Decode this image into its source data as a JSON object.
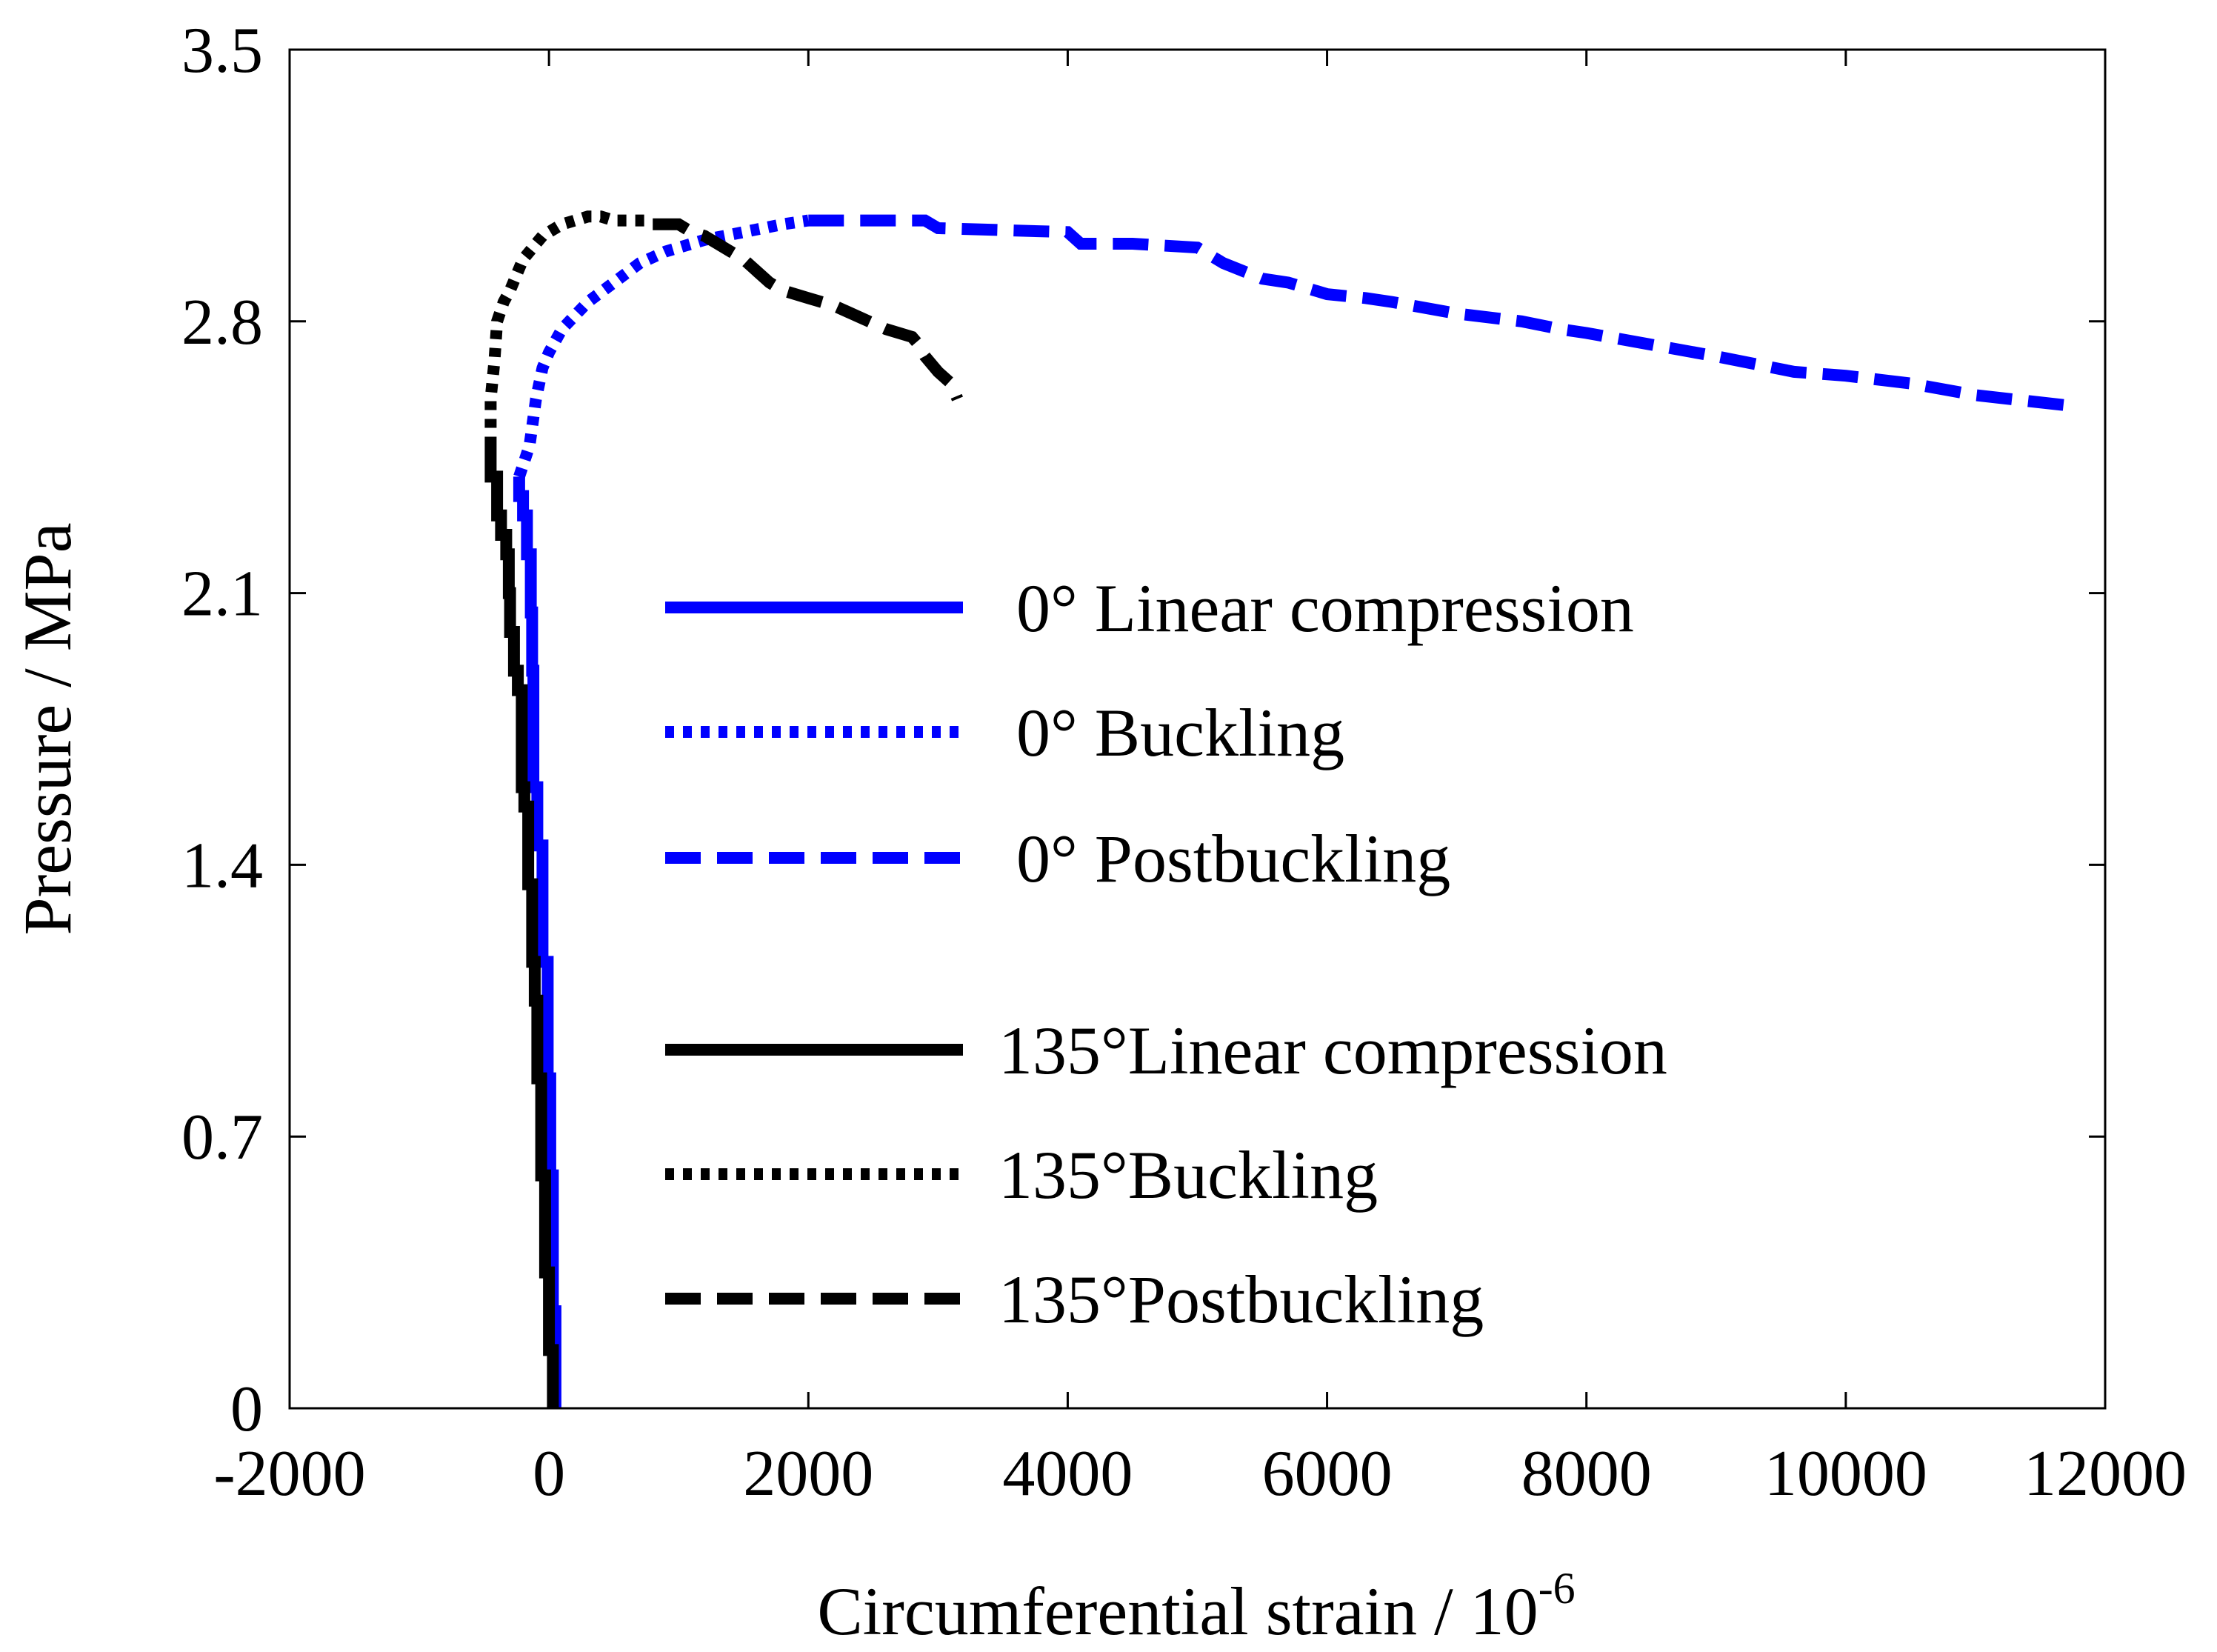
{
  "chart_data": {
    "type": "line",
    "xlabel": "Circumferential strain / 10",
    "xlabel_sup": "-6",
    "ylabel": "Pressure / MPa",
    "xlim": [
      -2000,
      12000
    ],
    "ylim": [
      0,
      3.5
    ],
    "xticks": [
      -2000,
      0,
      2000,
      4000,
      6000,
      8000,
      10000,
      12000
    ],
    "xtick_labels": [
      "-2000",
      "0",
      "2000",
      "4000",
      "6000",
      "8000",
      "10000",
      "12000"
    ],
    "yticks": [
      0,
      0.7,
      1.4,
      2.1,
      2.8,
      3.5
    ],
    "ytick_labels": [
      "0",
      "0.7",
      "1.4",
      "2.1",
      "2.8",
      "3.5"
    ],
    "grid": false,
    "legend_position": "center",
    "series": [
      {
        "name": "0° Linear compression",
        "color": "#0000ff",
        "dash": "solid",
        "x": [
          50,
          50,
          30,
          30,
          10,
          10,
          -10,
          -10,
          -50,
          -50,
          -90,
          -90,
          -120,
          -120,
          -130,
          -130,
          -140,
          -140,
          -170,
          -170,
          -200,
          -200,
          -230,
          -230
        ],
        "y": [
          0,
          0.25,
          0.25,
          0.6,
          0.6,
          0.85,
          0.85,
          1.15,
          1.15,
          1.45,
          1.45,
          1.6,
          1.6,
          1.9,
          1.9,
          2.05,
          2.05,
          2.2,
          2.2,
          2.3,
          2.3,
          2.35,
          2.35,
          2.4
        ]
      },
      {
        "name": "0° Buckling",
        "color": "#0000ff",
        "dash": "dotted",
        "x": [
          -230,
          -150,
          -100,
          -50,
          0,
          100,
          300,
          500,
          700,
          900,
          1200,
          1500,
          1800,
          2000
        ],
        "y": [
          2.4,
          2.48,
          2.6,
          2.68,
          2.72,
          2.78,
          2.85,
          2.9,
          2.95,
          2.98,
          3.01,
          3.03,
          3.05,
          3.06
        ]
      },
      {
        "name": "0° Postbuckling",
        "color": "#0000ff",
        "dash": "dashed",
        "x": [
          2000,
          2900,
          3000,
          4000,
          4100,
          4500,
          5000,
          5200,
          5500,
          5700,
          6000,
          6300,
          6500,
          7000,
          7500,
          7800,
          8000,
          8500,
          9000,
          9300,
          9600,
          10000,
          10500,
          11000,
          11800
        ],
        "y": [
          3.06,
          3.06,
          3.04,
          3.03,
          3.0,
          3.0,
          2.99,
          2.95,
          2.91,
          2.9,
          2.87,
          2.86,
          2.85,
          2.82,
          2.8,
          2.78,
          2.77,
          2.74,
          2.71,
          2.69,
          2.67,
          2.66,
          2.64,
          2.61,
          2.58
        ]
      },
      {
        "name": "135°Linear compression",
        "color": "#000000",
        "dash": "solid",
        "x": [
          30,
          30,
          0,
          0,
          -30,
          -30,
          -60,
          -60,
          -90,
          -90,
          -110,
          -110,
          -130,
          -130,
          -160,
          -160,
          -190,
          -190,
          -210,
          -210,
          -240,
          -240,
          -270,
          -270,
          -300,
          -300,
          -310,
          -310,
          -330,
          -330,
          -370,
          -370,
          -400,
          -400,
          -450,
          -450
        ],
        "y": [
          0,
          0.15,
          0.15,
          0.35,
          0.35,
          0.6,
          0.6,
          0.85,
          0.85,
          1.05,
          1.05,
          1.15,
          1.15,
          1.35,
          1.35,
          1.55,
          1.55,
          1.6,
          1.6,
          1.85,
          1.85,
          1.9,
          1.9,
          2.0,
          2.0,
          2.1,
          2.1,
          2.2,
          2.2,
          2.25,
          2.25,
          2.3,
          2.3,
          2.4,
          2.4,
          2.48
        ]
      },
      {
        "name": "135°Buckling",
        "color": "#000000",
        "dash": "dotted",
        "x": [
          -450,
          -450,
          -420,
          -400,
          -350,
          -300,
          -250,
          -200,
          -150,
          -100,
          -50,
          0,
          50,
          100,
          200,
          300,
          400,
          500,
          600,
          700,
          800
        ],
        "y": [
          2.48,
          2.6,
          2.7,
          2.8,
          2.85,
          2.88,
          2.92,
          2.96,
          2.98,
          3.0,
          3.02,
          3.03,
          3.04,
          3.05,
          3.06,
          3.07,
          3.07,
          3.06,
          3.06,
          3.06,
          3.06
        ]
      },
      {
        "name": "135°Postbuckling",
        "color": "#000000",
        "dash": "dashed",
        "x": [
          800,
          1000,
          1100,
          1200,
          1300,
          1400,
          1500,
          1600,
          1700,
          1800,
          2000,
          2100,
          2200,
          2400,
          2600,
          2800,
          2850,
          2900,
          3000,
          3100,
          3150
        ],
        "y": [
          3.05,
          3.05,
          3.03,
          3.02,
          3.0,
          2.98,
          2.96,
          2.93,
          2.9,
          2.88,
          2.86,
          2.85,
          2.84,
          2.81,
          2.78,
          2.76,
          2.74,
          2.71,
          2.67,
          2.64,
          2.6
        ]
      }
    ]
  },
  "legend": {
    "items": [
      {
        "label": "0° Linear compression",
        "color": "#0000ff",
        "dash": "solid"
      },
      {
        "label": "0° Buckling",
        "color": "#0000ff",
        "dash": "dotted"
      },
      {
        "label": "0° Postbuckling",
        "color": "#0000ff",
        "dash": "dashed"
      },
      {
        "label": "135°Linear compression",
        "color": "#000000",
        "dash": "solid"
      },
      {
        "label": "135°Buckling",
        "color": "#000000",
        "dash": "dotted"
      },
      {
        "label": "135°Postbuckling",
        "color": "#000000",
        "dash": "dashed"
      }
    ]
  }
}
